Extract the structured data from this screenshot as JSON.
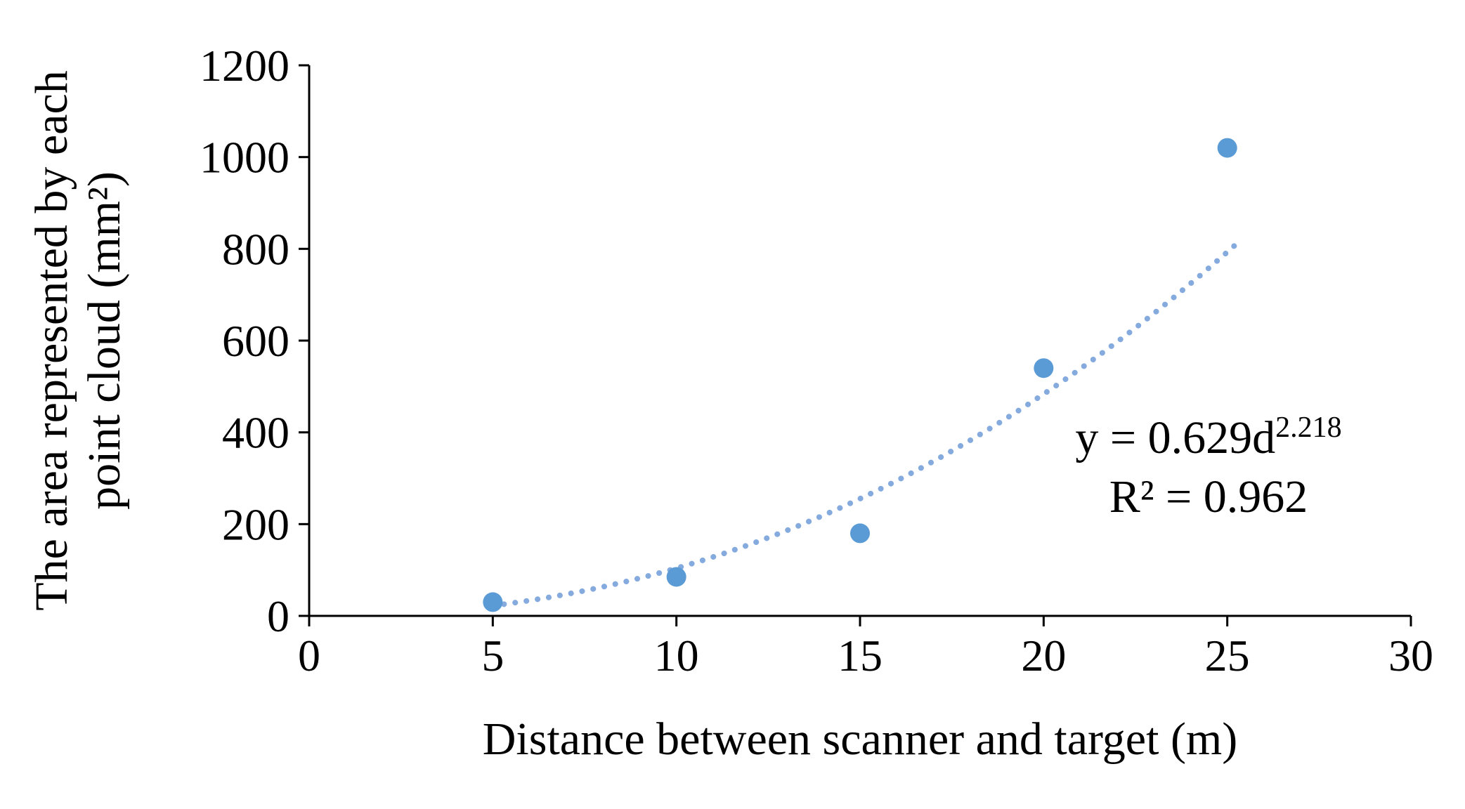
{
  "chart_data": {
    "type": "scatter",
    "title": "",
    "xlabel": "Distance between scanner and target (m)",
    "ylabel": "The area represented by each point cloud (mm²)",
    "ylabel_line1": "The area represented by each",
    "ylabel_line2": "point cloud (mm²)",
    "xlim": [
      0,
      30
    ],
    "ylim": [
      0,
      1200
    ],
    "x_ticks": [
      0,
      5,
      10,
      15,
      20,
      25,
      30
    ],
    "y_ticks": [
      0,
      200,
      400,
      600,
      800,
      1000,
      1200
    ],
    "grid": false,
    "legend": "none",
    "points": [
      {
        "x": 5,
        "y": 30
      },
      {
        "x": 10,
        "y": 85
      },
      {
        "x": 15,
        "y": 180
      },
      {
        "x": 20,
        "y": 540
      },
      {
        "x": 25,
        "y": 1020
      }
    ],
    "trendline": {
      "type": "power",
      "style": "dotted",
      "coefficient": 0.629,
      "exponent": 2.218,
      "x_start": 5,
      "x_end": 25.2,
      "equation_base": "y = 0.629d",
      "equation_exponent": "2.218",
      "r_squared_label": "R² = 0.962"
    },
    "colors": {
      "marker": "#5b9bd5",
      "trendline": "#84aade",
      "axis": "#000000",
      "text": "#000000"
    }
  }
}
